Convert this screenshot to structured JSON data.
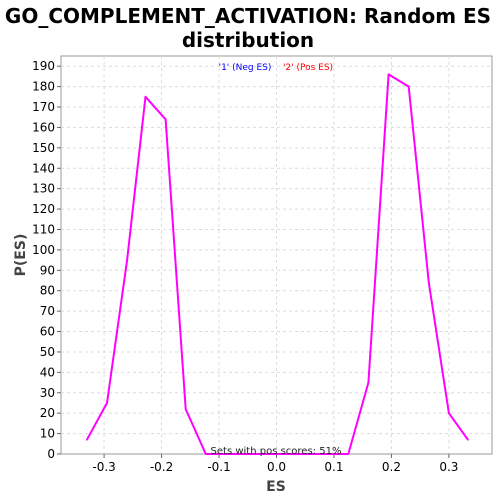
{
  "chart_data": {
    "type": "line",
    "title_lines": [
      "GO_COMPLEMENT_ACTIVATION: Random ES",
      "distribution"
    ],
    "xlabel": "ES",
    "ylabel": "P(ES)",
    "xlim": [
      -0.375,
      0.375
    ],
    "ylim": [
      0,
      195
    ],
    "x_ticks": [
      -0.3,
      -0.2,
      -0.1,
      0.0,
      0.1,
      0.2,
      0.3
    ],
    "x_tick_labels": [
      "-0.3",
      "-0.2",
      "-0.1",
      "0.0",
      "0.1",
      "0.2",
      "0.3"
    ],
    "y_ticks": [
      0,
      10,
      20,
      30,
      40,
      50,
      60,
      70,
      80,
      90,
      100,
      110,
      120,
      130,
      140,
      150,
      160,
      170,
      180,
      190
    ],
    "grid": true,
    "legend_position": "top-center",
    "legend": [
      {
        "label": "'1' (Neg ES)",
        "color": "#0000ff"
      },
      {
        "label": "'2' (Pos ES)",
        "color": "#ff0000"
      }
    ],
    "annotation": "Sets with pos scores: 51%",
    "line_color": "#ff00ff",
    "series": [
      {
        "x": [
          -0.33,
          -0.295,
          -0.26,
          -0.228,
          -0.193,
          -0.158,
          -0.123,
          -0.1,
          -0.06,
          -0.03,
          0.0,
          0.03,
          0.06,
          0.09,
          0.125,
          0.16,
          0.195,
          0.23,
          0.265,
          0.3,
          0.333
        ],
        "y": [
          7,
          25,
          95,
          175,
          164,
          22,
          0,
          0,
          0,
          0,
          0,
          0,
          0,
          0,
          0,
          35,
          186,
          180,
          84,
          20,
          7
        ]
      }
    ]
  }
}
